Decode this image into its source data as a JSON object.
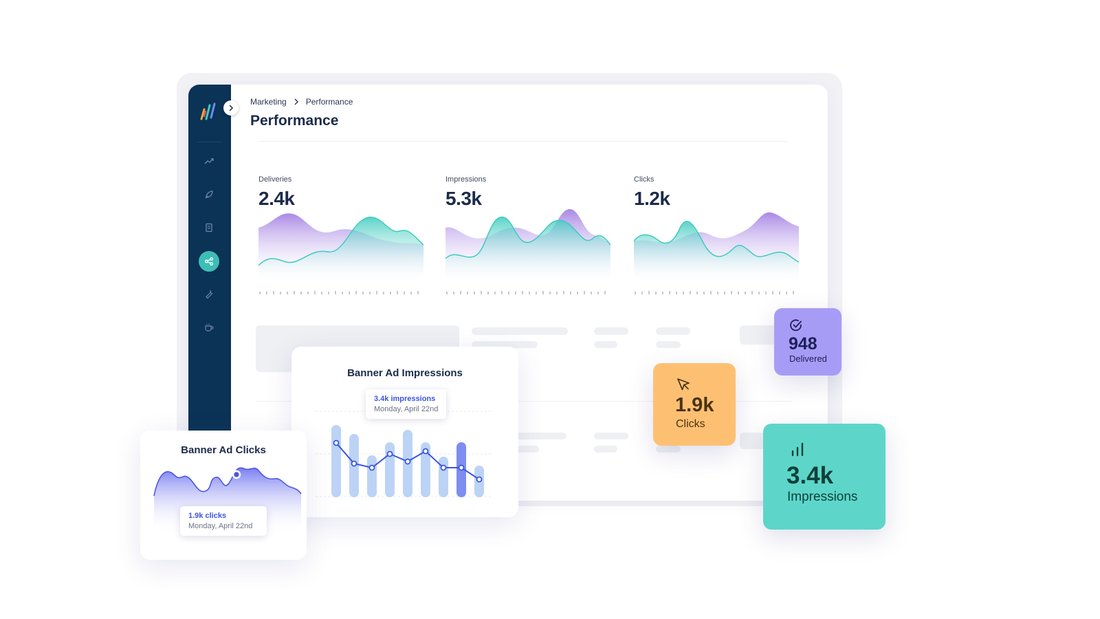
{
  "breadcrumb": {
    "parent": "Marketing",
    "current": "Performance"
  },
  "page_title": "Performance",
  "sidebar": {
    "logo": "app-logo",
    "items": [
      {
        "icon": "trending-up-icon",
        "active": false
      },
      {
        "icon": "rocket-icon",
        "active": false
      },
      {
        "icon": "clipboard-icon",
        "active": false
      },
      {
        "icon": "share-icon",
        "active": true
      },
      {
        "icon": "wrench-icon",
        "active": false
      },
      {
        "icon": "coffee-cup-icon",
        "active": false
      }
    ]
  },
  "metrics": [
    {
      "label": "Deliveries",
      "value": "2.4k"
    },
    {
      "label": "Impressions",
      "value": "5.3k"
    },
    {
      "label": "Clicks",
      "value": "1.2k"
    }
  ],
  "colors": {
    "purple": "#8f6be0",
    "teal": "#3dcbbf",
    "navy": "#0b3356",
    "accent_blue": "#3a55e0"
  },
  "banner_impressions": {
    "title": "Banner Ad Impressions",
    "tooltip": {
      "value": "3.4k impressions",
      "date": "Monday, April 22nd"
    }
  },
  "banner_clicks": {
    "title": "Banner Ad Clicks",
    "tooltip": {
      "value": "1.9k clicks",
      "date": "Monday, April 22nd"
    }
  },
  "stats": {
    "delivered": {
      "value": "948",
      "label": "Delivered",
      "icon": "check-circle-icon"
    },
    "clicks": {
      "value": "1.9k",
      "label": "Clicks",
      "icon": "cursor-icon"
    },
    "impressions": {
      "value": "3.4k",
      "label": "Impressions",
      "icon": "bar-chart-icon"
    }
  }
}
